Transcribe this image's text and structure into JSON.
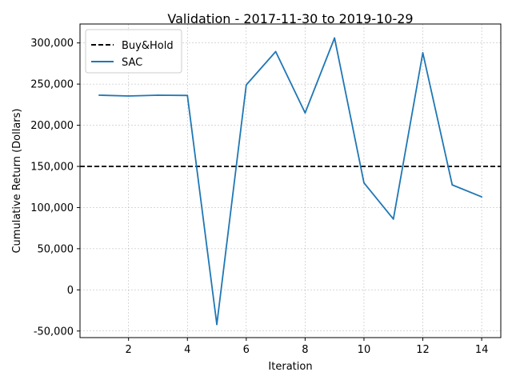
{
  "chart_data": {
    "type": "line",
    "title": "Validation - 2017-11-30 to 2019-10-29",
    "xlabel": "Iteration",
    "ylabel": "Cumulative Return (Dollars)",
    "xlim": [
      0.35,
      14.65
    ],
    "ylim": [
      -58000,
      323000
    ],
    "xticks": [
      2,
      4,
      6,
      8,
      10,
      12,
      14
    ],
    "xtick_labels": [
      "2",
      "4",
      "6",
      "8",
      "10",
      "12",
      "14"
    ],
    "yticks": [
      -50000,
      0,
      50000,
      100000,
      150000,
      200000,
      250000,
      300000
    ],
    "ytick_labels": [
      "-50,000",
      "0",
      "50,000",
      "100,000",
      "150,000",
      "200,000",
      "250,000",
      "300,000"
    ],
    "grid": true,
    "legend_position": "top-left",
    "series": [
      {
        "name": "Buy&Hold",
        "style": "dashed",
        "color": "#000000",
        "horizontal_value": 150000
      },
      {
        "name": "SAC",
        "style": "solid",
        "color": "#1f77b4",
        "x": [
          1,
          2,
          3,
          4,
          5,
          6,
          7,
          8,
          9,
          10,
          11,
          12,
          13,
          14
        ],
        "values": [
          236500,
          235500,
          236500,
          236200,
          -42000,
          249000,
          289500,
          215000,
          306000,
          130000,
          86000,
          288000,
          127500,
          113000
        ]
      }
    ]
  }
}
